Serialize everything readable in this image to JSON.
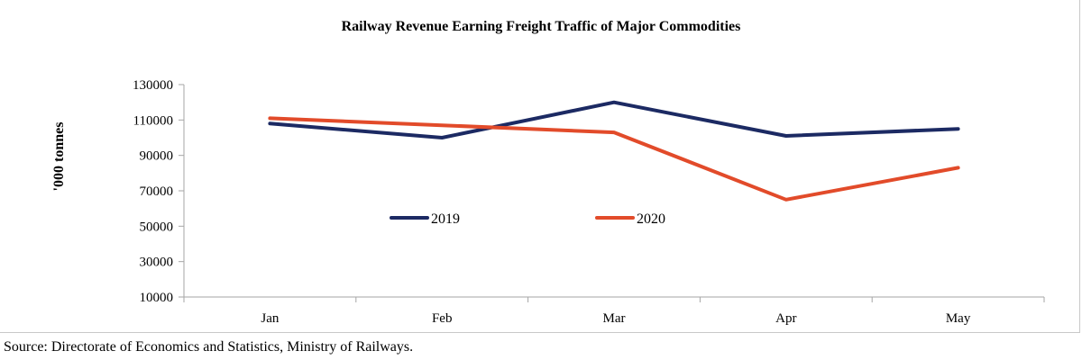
{
  "chart_data": {
    "type": "line",
    "title": "Railway Revenue Earning Freight Traffic of Major Commodities",
    "xlabel": "",
    "ylabel": "'000 tonnes",
    "categories": [
      "Jan",
      "Feb",
      "Mar",
      "Apr",
      "May"
    ],
    "y_ticks": [
      "10000",
      "30000",
      "50000",
      "70000",
      "90000",
      "110000",
      "130000"
    ],
    "ylim": [
      10000,
      130000
    ],
    "grid": false,
    "legend_position": "center",
    "series": [
      {
        "name": "2019",
        "color": "#1c2a63",
        "values": [
          108000,
          100000,
          120000,
          101000,
          105000
        ]
      },
      {
        "name": "2020",
        "color": "#e24b2a",
        "values": [
          111000,
          107000,
          103000,
          65000,
          83000
        ]
      }
    ]
  },
  "source": "Source: Directorate of Economics and Statistics, Ministry of Railways."
}
